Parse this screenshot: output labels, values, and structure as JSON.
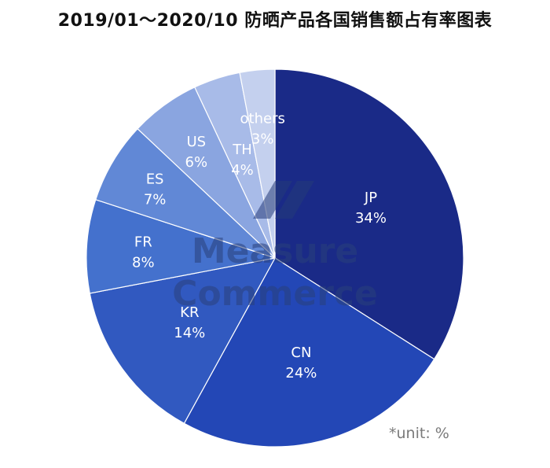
{
  "title": "2019/01～2020/10 防晒产品各国销售额占有率图表",
  "unit_note": "*unit: %",
  "watermark": {
    "line1": "Measure",
    "line2": "Commerce"
  },
  "chart_data": {
    "type": "pie",
    "title": "2019/01～2020/10 防晒产品各国销售额占有率图表",
    "unit": "%",
    "slices": [
      {
        "label": "JP",
        "value": 34,
        "display": "34%",
        "color": "#1a2a87"
      },
      {
        "label": "CN",
        "value": 24,
        "display": "24%",
        "color": "#2347b6"
      },
      {
        "label": "KR",
        "value": 14,
        "display": "14%",
        "color": "#3159c0"
      },
      {
        "label": "FR",
        "value": 8,
        "display": "8%",
        "color": "#4471cd"
      },
      {
        "label": "ES",
        "value": 7,
        "display": "7%",
        "color": "#6188d6"
      },
      {
        "label": "US",
        "value": 6,
        "display": "6%",
        "color": "#8aa5e0"
      },
      {
        "label": "TH",
        "value": 4,
        "display": "4%",
        "color": "#a8bbe8"
      },
      {
        "label": "others",
        "value": 3,
        "display": "3%",
        "color": "#c4d0ee"
      }
    ]
  }
}
